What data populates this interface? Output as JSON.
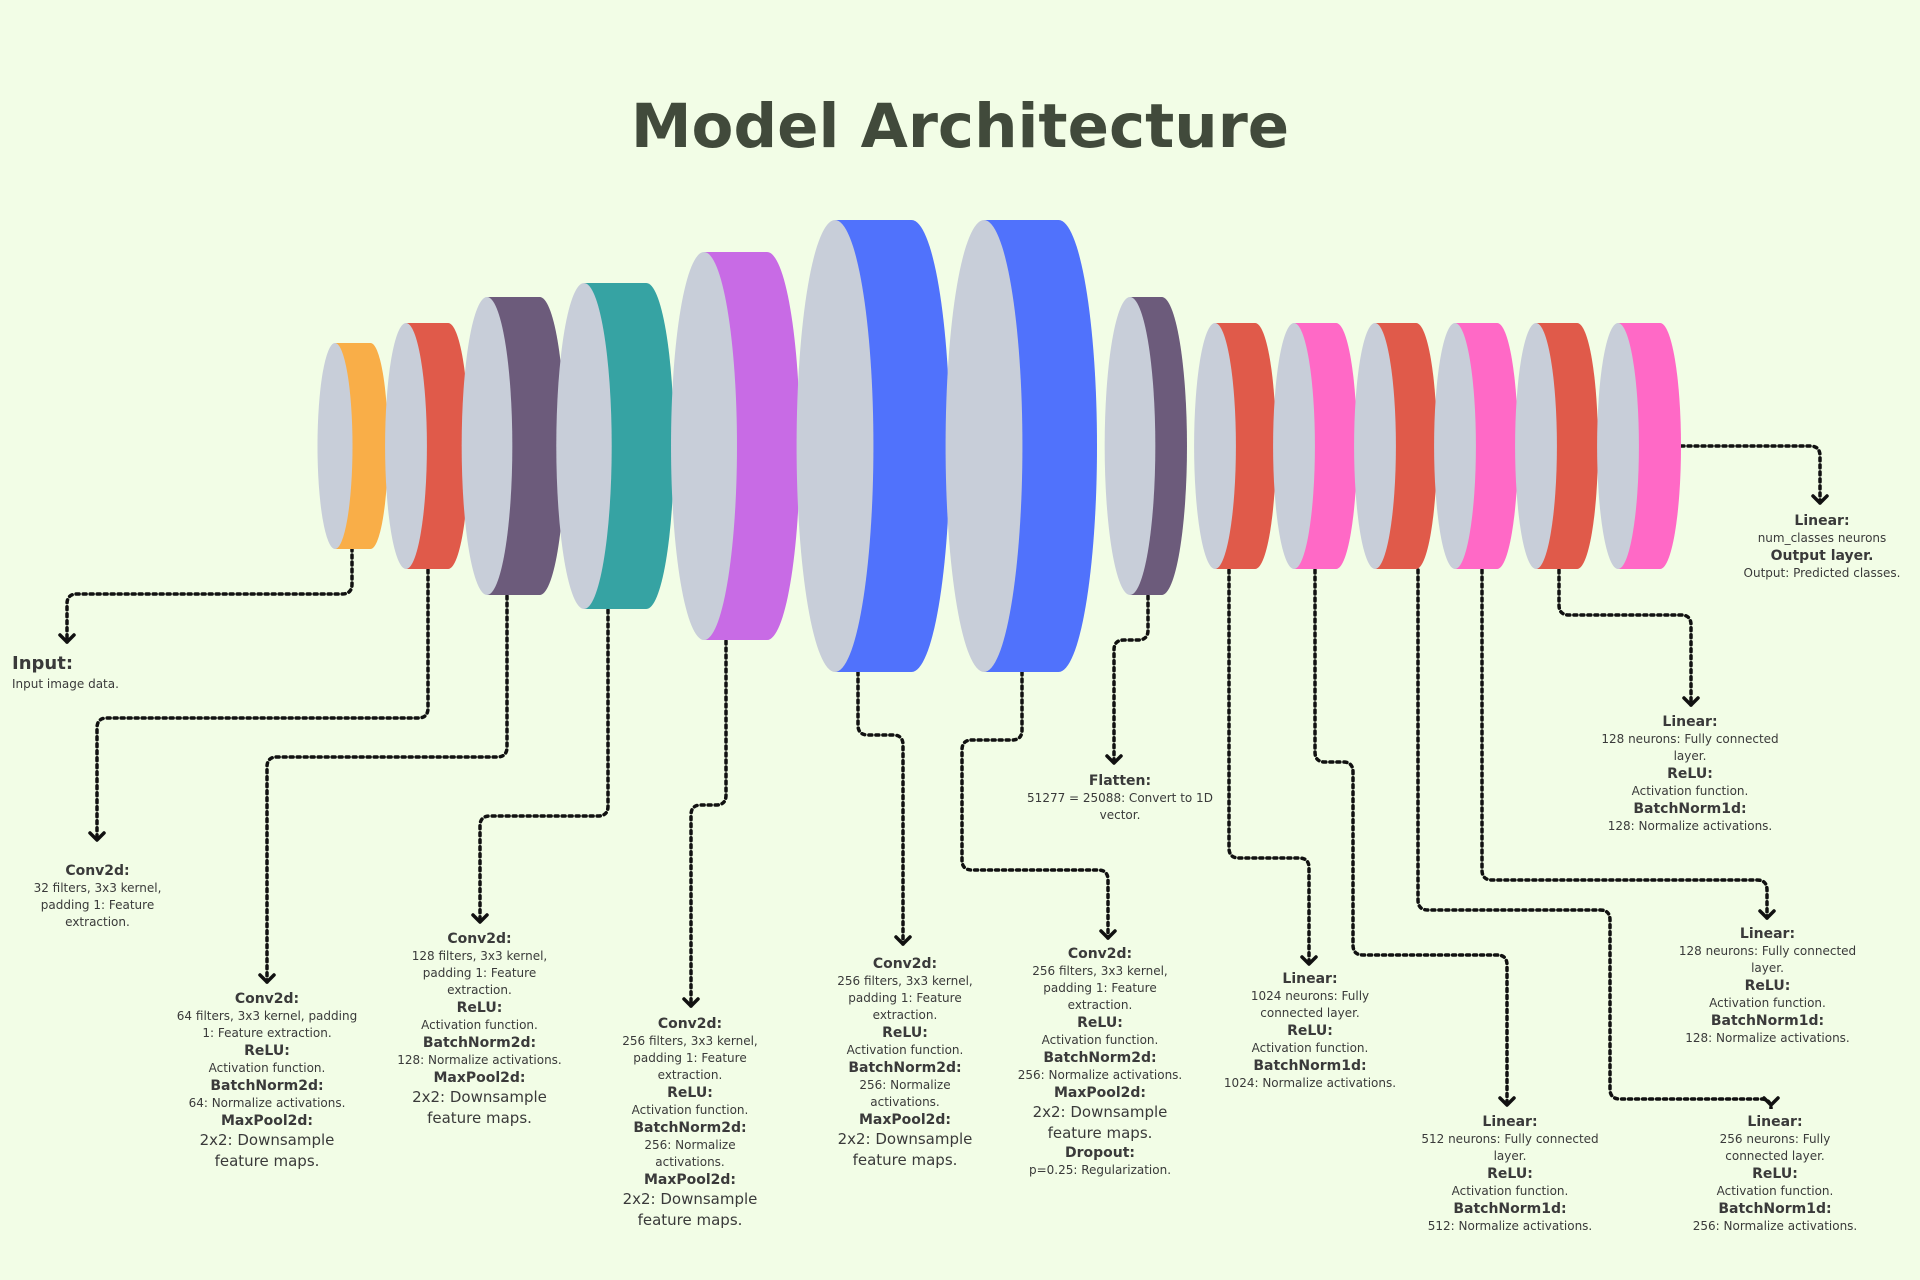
{
  "title": "Model Architecture",
  "palette": {
    "face": "#c8ced9",
    "orange": "#f9ae48",
    "red": "#e05a4a",
    "purple": "#6c5b7b",
    "teal": "#36a3a3",
    "violet": "#c86be5",
    "blue": "#5072fc",
    "pink": "#ff69c6"
  },
  "layers": [
    {
      "id": "input",
      "color": "orange",
      "texts": [
        {
          "h": "Input:"
        },
        {
          "d": "Input image data."
        }
      ]
    },
    {
      "id": "conv1",
      "color": "red",
      "texts": [
        {
          "h": "Conv2d:"
        },
        {
          "d": "32 filters, 3x3 kernel, padding 1: Feature extraction."
        }
      ]
    },
    {
      "id": "conv2",
      "color": "purple",
      "texts": [
        {
          "h": "Conv2d:"
        },
        {
          "d": "64 filters, 3x3 kernel, padding 1: Feature extraction."
        },
        {
          "h": "ReLU:"
        },
        {
          "d": "Activation function."
        },
        {
          "h": "BatchNorm2d:"
        },
        {
          "d": "64: Normalize activations."
        },
        {
          "h": "MaxPool2d:"
        },
        {
          "big": "2x2: Downsample feature maps."
        }
      ]
    },
    {
      "id": "conv3",
      "color": "teal",
      "texts": [
        {
          "h": "Conv2d:"
        },
        {
          "d": "128 filters, 3x3 kernel, padding 1: Feature extraction."
        },
        {
          "h": "ReLU:"
        },
        {
          "d": "Activation function."
        },
        {
          "h": "BatchNorm2d:"
        },
        {
          "d": "128: Normalize activations."
        },
        {
          "h": "MaxPool2d:"
        },
        {
          "big": "2x2: Downsample feature maps."
        }
      ]
    },
    {
      "id": "conv4",
      "color": "violet",
      "texts": [
        {
          "h": "Conv2d:"
        },
        {
          "d": "256 filters, 3x3 kernel, padding 1: Feature extraction."
        },
        {
          "h": "ReLU:"
        },
        {
          "d": "Activation function."
        },
        {
          "h": "BatchNorm2d:"
        },
        {
          "d": "256: Normalize activations."
        },
        {
          "h": "MaxPool2d:"
        },
        {
          "big": "2x2: Downsample feature maps."
        }
      ]
    },
    {
      "id": "conv5",
      "color": "blue",
      "texts": [
        {
          "h": "Conv2d:"
        },
        {
          "d": "256 filters, 3x3 kernel, padding 1: Feature extraction."
        },
        {
          "h": "ReLU:"
        },
        {
          "d": "Activation function."
        },
        {
          "h": "BatchNorm2d:"
        },
        {
          "d": "256: Normalize activations."
        },
        {
          "h": "MaxPool2d:"
        },
        {
          "big": "2x2: Downsample feature maps."
        }
      ]
    },
    {
      "id": "conv6",
      "color": "blue",
      "texts": [
        {
          "h": "Conv2d:"
        },
        {
          "d": "256 filters, 3x3 kernel, padding 1: Feature extraction."
        },
        {
          "h": "ReLU:"
        },
        {
          "d": "Activation function."
        },
        {
          "h": "BatchNorm2d:"
        },
        {
          "d": "256: Normalize activations."
        },
        {
          "h": "MaxPool2d:"
        },
        {
          "big": "2x2: Downsample feature maps."
        },
        {
          "h": "Dropout:"
        },
        {
          "d": "p=0.25: Regularization."
        }
      ]
    },
    {
      "id": "flatten",
      "color": "purple",
      "texts": [
        {
          "h": "Flatten:"
        },
        {
          "d": "51277 = 25088: Convert to 1D vector."
        }
      ]
    },
    {
      "id": "linear1024",
      "color": "red",
      "texts": [
        {
          "h": "Linear:"
        },
        {
          "d": "1024 neurons: Fully connected layer."
        },
        {
          "h": "ReLU:"
        },
        {
          "d": "Activation function."
        },
        {
          "h": "BatchNorm1d:"
        },
        {
          "d": "1024: Normalize activations."
        }
      ]
    },
    {
      "id": "act1",
      "color": "pink",
      "texts": [
        {
          "h": "Linear:"
        },
        {
          "d": "512 neurons: Fully connected layer."
        },
        {
          "h": "ReLU:"
        },
        {
          "d": "Activation function."
        },
        {
          "h": "BatchNorm1d:"
        },
        {
          "d": "512: Normalize activations."
        }
      ]
    },
    {
      "id": "linear2",
      "color": "red",
      "texts": [
        {
          "h": "Linear:"
        },
        {
          "d": "256 neurons: Fully connected layer."
        },
        {
          "h": "ReLU:"
        },
        {
          "d": "Activation function."
        },
        {
          "h": "BatchNorm1d:"
        },
        {
          "d": "256: Normalize activations."
        }
      ]
    },
    {
      "id": "act2",
      "color": "pink",
      "texts": [
        {
          "h": "Linear:"
        },
        {
          "d": "128 neurons: Fully connected layer."
        },
        {
          "h": "ReLU:"
        },
        {
          "d": "Activation function."
        },
        {
          "h": "BatchNorm1d:"
        },
        {
          "d": "128: Normalize activations."
        }
      ]
    },
    {
      "id": "linear3",
      "color": "red",
      "texts": [
        {
          "h": "Linear:"
        },
        {
          "d": "128 neurons: Fully connected layer."
        },
        {
          "h": "ReLU:"
        },
        {
          "d": "Activation function."
        },
        {
          "h": "BatchNorm1d:"
        },
        {
          "d": "128: Normalize activations."
        }
      ]
    },
    {
      "id": "output",
      "color": "pink",
      "texts": [
        {
          "h": "Linear:"
        },
        {
          "d": "num_classes neurons"
        },
        {
          "h": "Output layer."
        },
        {
          "d": "Output: Predicted classes."
        }
      ]
    }
  ]
}
